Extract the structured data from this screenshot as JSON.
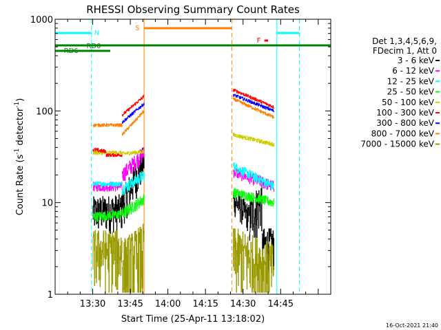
{
  "chart_data": {
    "type": "line",
    "title": "RHESSI Observing Summary Count Rates",
    "xlabel": "Start Time (25-Apr-11 13:18:02)",
    "ylabel": "Count Rate (s⁻¹ detector⁻¹)",
    "ylabel_parts": {
      "a": "Count Rate (s",
      "b": "-1",
      "c": " detector",
      "d": "-1",
      "e": ")"
    },
    "yscale": "log",
    "ylim": [
      1,
      1000
    ],
    "xlim_minutes": [
      795,
      905
    ],
    "x_ticks": [
      {
        "label": "13:30",
        "t": 810
      },
      {
        "label": "13:45",
        "t": 825
      },
      {
        "label": "14:00",
        "t": 840
      },
      {
        "label": "14:15",
        "t": 855
      },
      {
        "label": "14:30",
        "t": 870
      },
      {
        "label": "14:45",
        "t": 885
      }
    ],
    "y_ticks": [
      {
        "label": "1",
        "v": 1
      },
      {
        "label": "10",
        "v": 10
      },
      {
        "label": "100",
        "v": 100
      },
      {
        "label": "1000",
        "v": 1000
      }
    ],
    "legend_title": [
      "Det 1,3,4,5,6,9,",
      "FDecim 1, Att 0"
    ],
    "series": [
      {
        "name": "3 - 6 keV",
        "color": "#000000",
        "segments": [
          {
            "t0": 810.0,
            "t1": 821.7,
            "v0": 8,
            "v1": 8.5,
            "noise": 0.45
          },
          {
            "t0": 821.7,
            "t1": 830.5,
            "v0": 9.5,
            "v1": 30,
            "noise": 0.45
          },
          {
            "t0": 866.0,
            "t1": 872.5,
            "v0": 11,
            "v1": 7,
            "noise": 0.35
          },
          {
            "t0": 872.5,
            "t1": 877.5,
            "v0": 7,
            "v1": 11,
            "noise": 0.6
          },
          {
            "t0": 877.5,
            "t1": 882.3,
            "v0": 3.5,
            "v1": 3.5,
            "noise": 0.5
          }
        ]
      },
      {
        "name": "6 - 12 keV",
        "color": "#ff00ff",
        "segments": [
          {
            "t0": 810.0,
            "t1": 821.7,
            "v0": 15,
            "v1": 15,
            "noise": 0.12
          },
          {
            "t0": 821.7,
            "t1": 830.5,
            "v0": 20,
            "v1": 35,
            "noise": 0.2
          },
          {
            "t0": 866.0,
            "t1": 882.3,
            "v0": 22,
            "v1": 15,
            "noise": 0.15
          }
        ]
      },
      {
        "name": "12 - 25 keV",
        "color": "#00ffff",
        "segments": [
          {
            "t0": 810.0,
            "t1": 821.7,
            "v0": 16,
            "v1": 16,
            "noise": 0.06
          },
          {
            "t0": 821.7,
            "t1": 830.5,
            "v0": 14,
            "v1": 20,
            "noise": 0.15
          },
          {
            "t0": 866.0,
            "t1": 882.3,
            "v0": 25,
            "v1": 15,
            "noise": 0.12
          }
        ]
      },
      {
        "name": "25 - 50 keV",
        "color": "#00ff00",
        "segments": [
          {
            "t0": 810.0,
            "t1": 821.7,
            "v0": 7,
            "v1": 7.5,
            "noise": 0.12
          },
          {
            "t0": 821.7,
            "t1": 830.5,
            "v0": 7.5,
            "v1": 11,
            "noise": 0.15
          },
          {
            "t0": 866.0,
            "t1": 882.3,
            "v0": 13,
            "v1": 10,
            "noise": 0.12
          }
        ]
      },
      {
        "name": "50 - 100 keV",
        "color": "#cccc00",
        "segments": [
          {
            "t0": 810.0,
            "t1": 821.7,
            "v0": 35,
            "v1": 35,
            "noise": 0.05
          },
          {
            "t0": 821.7,
            "t1": 830.5,
            "v0": 34,
            "v1": 36,
            "noise": 0.05
          },
          {
            "t0": 866.0,
            "t1": 882.3,
            "v0": 55,
            "v1": 43,
            "noise": 0.05
          }
        ]
      },
      {
        "name": "100 - 300 keV",
        "color": "#ff0000",
        "segments": [
          {
            "t0": 810.0,
            "t1": 815.2,
            "v0": 38,
            "v1": 36,
            "noise": 0.05
          },
          {
            "t0": 815.2,
            "t1": 821.7,
            "v0": 33,
            "v1": 33,
            "noise": 0.04
          },
          {
            "t0": 821.7,
            "t1": 830.5,
            "v0": 90,
            "v1": 145,
            "noise": 0.04
          },
          {
            "t0": 866.0,
            "t1": 882.3,
            "v0": 170,
            "v1": 110,
            "noise": 0.04
          }
        ]
      },
      {
        "name": "300 - 800 keV",
        "color": "#0000ff",
        "segments": [
          {
            "t0": 821.7,
            "t1": 830.5,
            "v0": 75,
            "v1": 120,
            "noise": 0.04
          },
          {
            "t0": 866.0,
            "t1": 882.3,
            "v0": 150,
            "v1": 100,
            "noise": 0.04
          }
        ]
      },
      {
        "name": "800 - 7000 keV",
        "color": "#ff8000",
        "segments": [
          {
            "t0": 810.0,
            "t1": 821.7,
            "v0": 70,
            "v1": 70,
            "noise": 0.04
          },
          {
            "t0": 821.7,
            "t1": 830.5,
            "v0": 55,
            "v1": 100,
            "noise": 0.04
          },
          {
            "t0": 866.0,
            "t1": 882.3,
            "v0": 135,
            "v1": 85,
            "noise": 0.04
          }
        ]
      },
      {
        "name": "7000 - 15000 keV",
        "color": "#999900",
        "segments": [
          {
            "t0": 810.0,
            "t1": 821.7,
            "v0": 3,
            "v1": 3,
            "noise": 0.7
          },
          {
            "t0": 821.7,
            "t1": 830.5,
            "v0": 2,
            "v1": 3,
            "noise": 1.0
          },
          {
            "t0": 866.0,
            "t1": 882.3,
            "v0": 3,
            "v1": 2,
            "noise": 0.8
          }
        ]
      }
    ],
    "annotations": {
      "night_label": "N",
      "saa_label": "S",
      "flare_label": "F",
      "rd0_label": "RD0",
      "rd6_label": "RD6"
    },
    "flag_bars": [
      {
        "name": "night",
        "color": "#00ffff",
        "ranges": [
          [
            795,
            809.5
          ],
          [
            883.5,
            892.5
          ]
        ]
      },
      {
        "name": "saa",
        "color": "#ff8000",
        "ranges": [
          [
            830.5,
            865.5
          ]
        ]
      },
      {
        "name": "flare",
        "color": "#ff0000",
        "ranges": [
          [
            878.5,
            880.0
          ]
        ]
      },
      {
        "name": "rd0",
        "color": "#008000",
        "ranges": [
          [
            795,
            905
          ]
        ]
      },
      {
        "name": "rd6",
        "color": "#008000",
        "ranges": [
          [
            795,
            817.0
          ]
        ]
      }
    ],
    "event_lines": [
      {
        "color": "#00ffff",
        "t": 795.0,
        "style": "solid"
      },
      {
        "color": "#00ffff",
        "t": 809.5,
        "style": "dashed"
      },
      {
        "color": "#ff8000",
        "t": 830.5,
        "style": "solid"
      },
      {
        "color": "#ff8000",
        "t": 865.5,
        "style": "dashed"
      },
      {
        "color": "#00ffff",
        "t": 883.5,
        "style": "solid"
      },
      {
        "color": "#00ffff",
        "t": 892.5,
        "style": "dashed"
      }
    ],
    "grid": false,
    "legend_position": "right"
  },
  "footer": {
    "timestamp": "16-Oct-2021 21:40"
  }
}
